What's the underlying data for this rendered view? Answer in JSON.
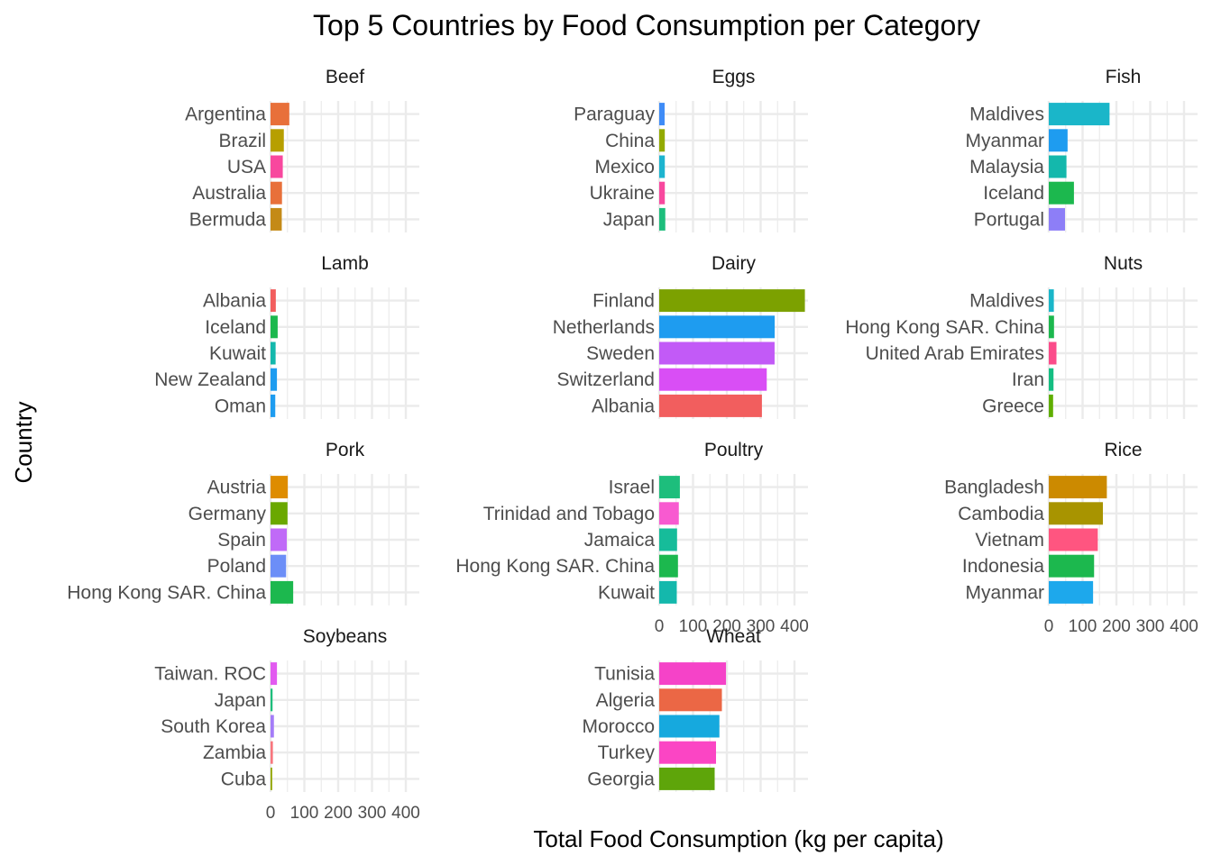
{
  "chart_data": {
    "type": "bar",
    "orientation": "horizontal",
    "title": "Top 5 Countries by Food Consumption per Category",
    "xlabel": "Total Food Consumption (kg per capita)",
    "ylabel": "Country",
    "xlim": [
      0,
      440
    ],
    "xticks": [
      0,
      100,
      200,
      300,
      400
    ],
    "grid": true,
    "legend": "none",
    "facets": [
      {
        "category": "Beef",
        "bars": [
          {
            "country": "Argentina",
            "value": 55.5,
            "color": "#E8703A"
          },
          {
            "country": "Brazil",
            "value": 39.3,
            "color": "#B79F00"
          },
          {
            "country": "USA",
            "value": 36.2,
            "color": "#F8489E"
          },
          {
            "country": "Australia",
            "value": 33.9,
            "color": "#E8703A"
          },
          {
            "country": "Bermuda",
            "value": 33.2,
            "color": "#C48A17"
          }
        ]
      },
      {
        "category": "Eggs",
        "bars": [
          {
            "country": "Paraguay",
            "value": 16.0,
            "color": "#3F8CF7"
          },
          {
            "country": "China",
            "value": 16.5,
            "color": "#93AA00"
          },
          {
            "country": "Mexico",
            "value": 16.6,
            "color": "#1DB4CF"
          },
          {
            "country": "Ukraine",
            "value": 16.6,
            "color": "#F8489E"
          },
          {
            "country": "Japan",
            "value": 18.0,
            "color": "#1DBE7C"
          }
        ]
      },
      {
        "category": "Fish",
        "bars": [
          {
            "country": "Maldives",
            "value": 179.7,
            "color": "#1AB6C9"
          },
          {
            "country": "Myanmar",
            "value": 55.6,
            "color": "#1E9CF0"
          },
          {
            "country": "Malaysia",
            "value": 52.3,
            "color": "#14B8AC"
          },
          {
            "country": "Iceland",
            "value": 74.4,
            "color": "#1CB84E"
          },
          {
            "country": "Portugal",
            "value": 48.0,
            "color": "#8D7EF7"
          }
        ]
      },
      {
        "category": "Lamb",
        "bars": [
          {
            "country": "Albania",
            "value": 15.6,
            "color": "#F25E5E"
          },
          {
            "country": "Iceland",
            "value": 21.1,
            "color": "#1CB84E"
          },
          {
            "country": "Kuwait",
            "value": 15.0,
            "color": "#14B8AC"
          },
          {
            "country": "New Zealand",
            "value": 18.9,
            "color": "#1E9CF0"
          },
          {
            "country": "Oman",
            "value": 14.0,
            "color": "#1E9CF0"
          }
        ]
      },
      {
        "category": "Dairy",
        "bars": [
          {
            "country": "Finland",
            "value": 430.8,
            "color": "#7CA100"
          },
          {
            "country": "Netherlands",
            "value": 341.5,
            "color": "#1E9CF0"
          },
          {
            "country": "Sweden",
            "value": 341.2,
            "color": "#C25AF7"
          },
          {
            "country": "Switzerland",
            "value": 318.0,
            "color": "#D94EF5"
          },
          {
            "country": "Albania",
            "value": 303.7,
            "color": "#F25E5E"
          }
        ]
      },
      {
        "category": "Nuts",
        "bars": [
          {
            "country": "Maldives",
            "value": 15.0,
            "color": "#1AB6C9"
          },
          {
            "country": "Hong Kong SAR. China",
            "value": 15.5,
            "color": "#1CB84E"
          },
          {
            "country": "United Arab Emirates",
            "value": 22.7,
            "color": "#FB4C8A"
          },
          {
            "country": "Iran",
            "value": 14.0,
            "color": "#14BE82"
          },
          {
            "country": "Greece",
            "value": 12.8,
            "color": "#5FAE00"
          }
        ]
      },
      {
        "category": "Pork",
        "bars": [
          {
            "country": "Austria",
            "value": 51.0,
            "color": "#DE8C00"
          },
          {
            "country": "Germany",
            "value": 50.2,
            "color": "#6AA800"
          },
          {
            "country": "Spain",
            "value": 48.0,
            "color": "#C06AF7"
          },
          {
            "country": "Poland",
            "value": 46.0,
            "color": "#6C8EF7"
          },
          {
            "country": "Hong Kong SAR. China",
            "value": 67.0,
            "color": "#1CB84E"
          }
        ]
      },
      {
        "category": "Poultry",
        "bars": [
          {
            "country": "Israel",
            "value": 61.1,
            "color": "#1DBE7C"
          },
          {
            "country": "Trinidad and Tobago",
            "value": 58.0,
            "color": "#F85AD0"
          },
          {
            "country": "Jamaica",
            "value": 52.8,
            "color": "#16BC9A"
          },
          {
            "country": "Hong Kong SAR. China",
            "value": 55.5,
            "color": "#1CB84E"
          },
          {
            "country": "Kuwait",
            "value": 52.0,
            "color": "#14B8AC"
          }
        ]
      },
      {
        "category": "Rice",
        "bars": [
          {
            "country": "Bangladesh",
            "value": 171.7,
            "color": "#CC8A00"
          },
          {
            "country": "Cambodia",
            "value": 160.0,
            "color": "#A89400"
          },
          {
            "country": "Vietnam",
            "value": 145.0,
            "color": "#FF5580"
          },
          {
            "country": "Indonesia",
            "value": 134.0,
            "color": "#1CB84E"
          },
          {
            "country": "Myanmar",
            "value": 131.0,
            "color": "#1DA8EC"
          }
        ]
      },
      {
        "category": "Soybeans",
        "bars": [
          {
            "country": "Taiwan. ROC",
            "value": 19.0,
            "color": "#E25AF0"
          },
          {
            "country": "Japan",
            "value": 6.0,
            "color": "#1DBE7C"
          },
          {
            "country": "South Korea",
            "value": 10.0,
            "color": "#A47CF8"
          },
          {
            "country": "Zambia",
            "value": 7.0,
            "color": "#F8767D"
          },
          {
            "country": "Cuba",
            "value": 5.0,
            "color": "#94A800"
          }
        ]
      },
      {
        "category": "Wheat",
        "bars": [
          {
            "country": "Tunisia",
            "value": 197.5,
            "color": "#F543C8"
          },
          {
            "country": "Algeria",
            "value": 185.4,
            "color": "#EB6745"
          },
          {
            "country": "Morocco",
            "value": 178.0,
            "color": "#16A9DE"
          },
          {
            "country": "Turkey",
            "value": 168.0,
            "color": "#FB45C4"
          },
          {
            "country": "Georgia",
            "value": 164.0,
            "color": "#5EA50A"
          }
        ]
      }
    ]
  }
}
